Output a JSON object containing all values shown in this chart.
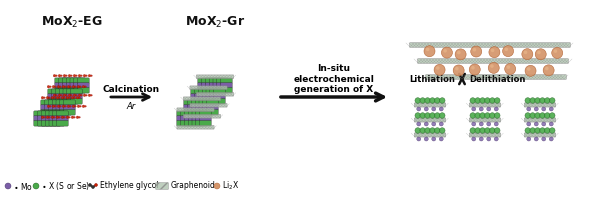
{
  "fig_width": 6.12,
  "fig_height": 1.97,
  "dpi": 100,
  "bg_color": "#ffffff",
  "label1": "MoX$_2$-EG",
  "label2": "MoX$_2$-Gr",
  "arrow1_label": "Calcination",
  "arrow1_sub": "Ar",
  "arrow2_label": "In-situ\nelectrochemical\ngeneration of X",
  "arrow3_left": "Lithiation",
  "arrow3_right": "Delithiation",
  "mo_color": "#7B5EA7",
  "x_color": "#3a8a3a",
  "x_color2": "#4aaa4a",
  "graphene_color": "#b0c4b0",
  "graphene_edge": "#888888",
  "li2x_color": "#D4956A",
  "li2x_edge": "#b06030",
  "dot_color": "#cc2200",
  "arrow_color": "#111111",
  "title_color": "#111111",
  "legend_mo": "#7B5EA7",
  "legend_x": "#4aaa4a",
  "legend_dot": "#cc2200",
  "legend_graphene": "#b0c4b0",
  "legend_li2x": "#D4956A"
}
